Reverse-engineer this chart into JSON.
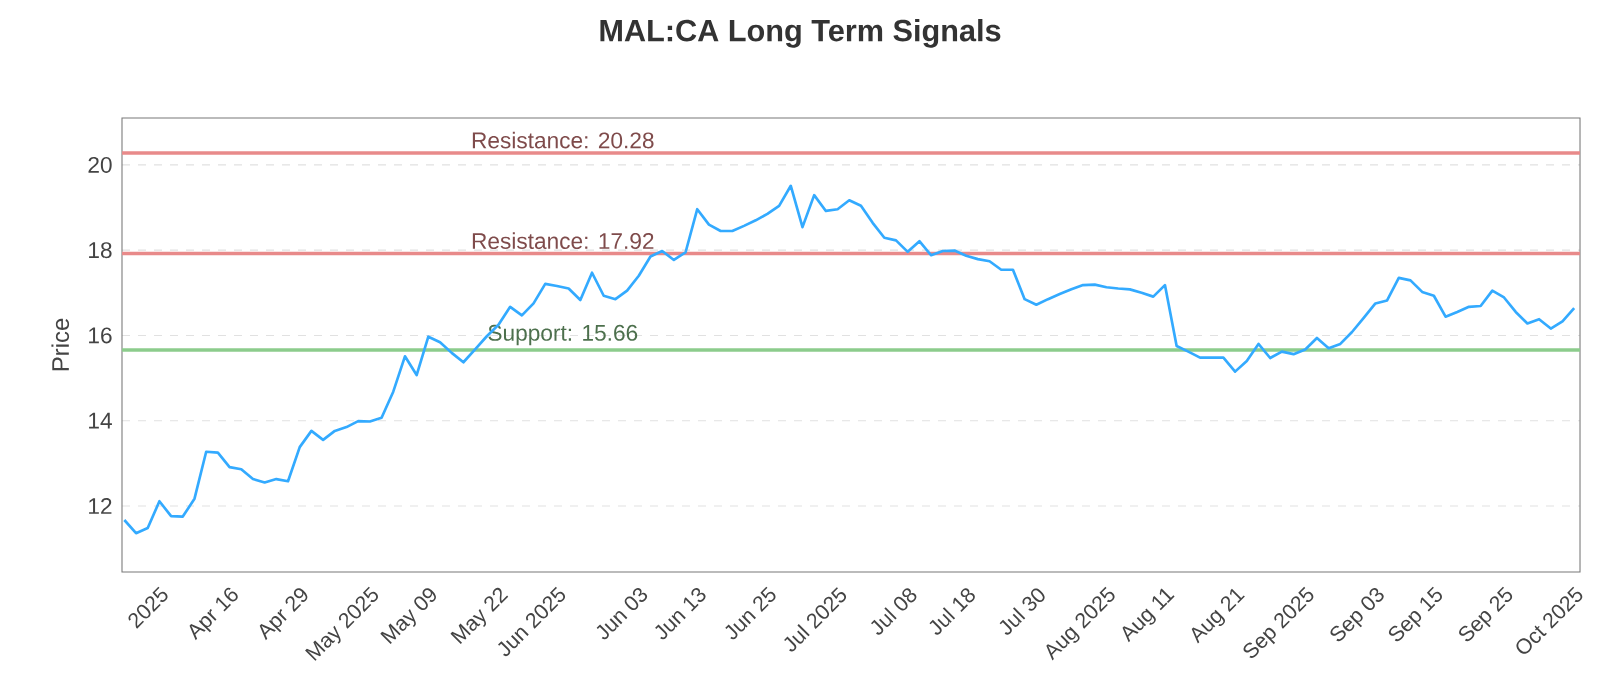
{
  "chart_data": {
    "type": "line",
    "title": "MAL:CA Long Term Signals",
    "ylabel": "Price",
    "categories": [
      null,
      null,
      null,
      "2025",
      null,
      null,
      null,
      null,
      null,
      "Apr 16",
      null,
      null,
      null,
      null,
      null,
      "Apr 29",
      null,
      null,
      null,
      null,
      null,
      "May 2025",
      null,
      null,
      null,
      null,
      "May 09",
      null,
      null,
      null,
      null,
      null,
      "May 22",
      null,
      null,
      null,
      null,
      "Jun 2025",
      null,
      null,
      null,
      null,
      null,
      null,
      "Jun 03",
      null,
      null,
      null,
      null,
      "Jun 13",
      null,
      null,
      null,
      null,
      null,
      "Jun 25",
      null,
      null,
      null,
      null,
      null,
      "Jul 2025",
      null,
      null,
      null,
      null,
      null,
      "Jul 08",
      null,
      null,
      null,
      null,
      "Jul 18",
      null,
      null,
      null,
      null,
      null,
      "Jul 30",
      null,
      null,
      null,
      null,
      null,
      "Aug 2025",
      null,
      null,
      null,
      null,
      "Aug 11",
      null,
      null,
      null,
      null,
      null,
      "Aug 21",
      null,
      null,
      null,
      null,
      null,
      "Sep 2025",
      null,
      null,
      null,
      null,
      null,
      "Sep 03",
      null,
      null,
      null,
      null,
      "Sep 15",
      null,
      null,
      null,
      null,
      null,
      "Sep 25",
      null,
      null,
      null,
      null,
      null,
      "Oct 2025"
    ],
    "series": [
      {
        "color": "#33aaff",
        "values": [
          11.67,
          11.36,
          11.48,
          12.11,
          11.76,
          11.75,
          12.17,
          13.27,
          13.25,
          12.91,
          12.86,
          12.63,
          12.55,
          12.63,
          12.58,
          13.38,
          13.76,
          13.55,
          13.76,
          13.85,
          13.99,
          13.98,
          14.07,
          14.68,
          15.51,
          15.07,
          15.97,
          15.84,
          15.59,
          15.37,
          15.67,
          15.98,
          16.25,
          16.67,
          16.47,
          16.75,
          17.21,
          17.16,
          17.1,
          16.83,
          17.47,
          16.93,
          16.85,
          17.05,
          17.4,
          17.85,
          17.98,
          17.77,
          17.95,
          18.96,
          18.6,
          18.45,
          18.45,
          18.57,
          18.7,
          18.85,
          19.04,
          19.51,
          18.54,
          19.29,
          18.92,
          18.96,
          19.17,
          19.04,
          18.64,
          18.29,
          18.23,
          17.96,
          18.21,
          17.88,
          17.98,
          17.99,
          17.87,
          17.79,
          17.74,
          17.54,
          17.54,
          16.85,
          16.72,
          16.85,
          16.97,
          17.08,
          17.18,
          17.19,
          17.13,
          17.1,
          17.08,
          17.0,
          16.91,
          17.18,
          15.75,
          15.62,
          15.48,
          15.48,
          15.48,
          15.15,
          15.4,
          15.8,
          15.47,
          15.62,
          15.56,
          15.67,
          15.94,
          15.7,
          15.8,
          16.08,
          16.41,
          16.75,
          16.82,
          17.35,
          17.29,
          17.02,
          16.93,
          16.44,
          16.55,
          16.67,
          16.69,
          17.05,
          16.89,
          16.55,
          16.28,
          16.38,
          16.16,
          16.33,
          16.64
        ]
      }
    ],
    "ylim": [
      10.45,
      21.1
    ],
    "yticks": [
      12,
      14,
      16,
      18,
      20
    ],
    "grid": "y",
    "marker": "none",
    "line_style": "solid",
    "ref_lines": [
      {
        "axis": "y",
        "value": 20.28,
        "label": "Resistance: 20.28",
        "color": "#e88a8a"
      },
      {
        "axis": "y",
        "value": 17.92,
        "label": "Resistance: 17.92",
        "color": "#e88a8a"
      },
      {
        "axis": "y",
        "value": 15.66,
        "label": "Support: 15.66",
        "color": "#8ccc8c"
      }
    ]
  }
}
